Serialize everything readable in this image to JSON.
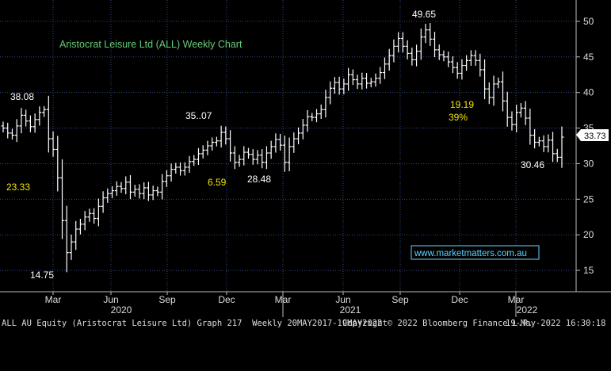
{
  "chart_data": {
    "type": "ohlc",
    "title": "Aristocrat Leisure Ltd (ALL) Weekly Chart",
    "ylim": [
      12,
      53
    ],
    "yticks": [
      15,
      20,
      25,
      30,
      35,
      40,
      45,
      50
    ],
    "x_labels": [
      "Mar",
      "Jun",
      "Sep",
      "Dec",
      "Mar",
      "Jun",
      "Sep",
      "Dec",
      "Mar"
    ],
    "year_labels": [
      "2020",
      "2021",
      "2022"
    ],
    "last_price": "33.73",
    "annotations": {
      "high_2019": "38.08",
      "low_2020": "14.75",
      "rebound_pct": "23.33",
      "peak_dec": "35..07",
      "pullback_pct": "6.59",
      "low_nov": "28.48",
      "peak_2021": "49.65",
      "decline_abs": "19.19",
      "decline_pct": "39%",
      "low_2022": "30.46"
    },
    "watermark": "www.marketmatters.com.au",
    "weekly_close_series": [
      35,
      34.3,
      34,
      35.3,
      36.8,
      36,
      35.2,
      36.2,
      37.2,
      37.6,
      33.5,
      32,
      28,
      22,
      17.5,
      19,
      20.8,
      21.5,
      22.5,
      23,
      22.3,
      24,
      25.2,
      25.8,
      26.2,
      26.8,
      26.5,
      27.4,
      26,
      26.4,
      25.8,
      26.6,
      25.6,
      26.2,
      26,
      27.5,
      28.3,
      29.2,
      29.5,
      29,
      29.5,
      30.3,
      30.6,
      31.4,
      31.9,
      32.5,
      33,
      33.2,
      34.4,
      33.5,
      31.5,
      30.2,
      30.6,
      31.6,
      31.3,
      30.6,
      31.2,
      30.2,
      31.5,
      32.4,
      33.4,
      32.6,
      30.2,
      32.4,
      33.5,
      34.3,
      35.4,
      36.6,
      36.5,
      37,
      37.6,
      39.3,
      40.6,
      41.4,
      40.5,
      41.2,
      42.5,
      41.8,
      41.2,
      42,
      41.3,
      41.5,
      42,
      42.8,
      44,
      45.2,
      46.5,
      47.6,
      46.5,
      45.5,
      44.6,
      45.8,
      47.8,
      48.8,
      47.5,
      46,
      45.3,
      45,
      44.3,
      43.5,
      42.7,
      43.8,
      44.5,
      45.2,
      44.5,
      43.2,
      40.5,
      39.3,
      41.2,
      41.5,
      38.8,
      36.5,
      35.5,
      37.2,
      37.8,
      36.4,
      34,
      33,
      33.2,
      32.4,
      33.3,
      31.4,
      30.9,
      33.73
    ]
  },
  "footer": {
    "left": "ALL AU Equity (Aristocrat Leisure Ltd) Graph 217  Weekly 20MAY2017-19MAY2022",
    "middle": "Copyright© 2022 Bloomberg Finance L.P.",
    "right": "19-May-2022 16:30:18"
  },
  "colors": {
    "background": "#000000",
    "grid": "#2f4780",
    "bars": "#ffffff",
    "title": "#66cc77",
    "yellow_annotation": "#f2e600",
    "white_annotation": "#ffffff",
    "axis_text": "#dddddd",
    "watermark": "#5ed4ff"
  }
}
